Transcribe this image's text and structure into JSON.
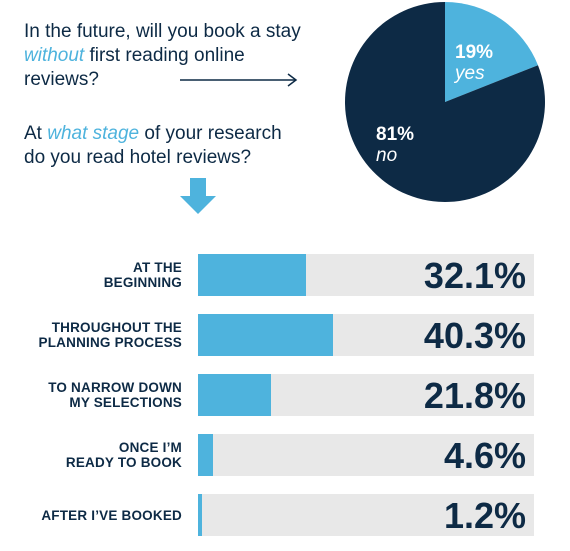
{
  "question1": {
    "pre": "In the future, will you book a stay ",
    "em": "without",
    "post": " first reading online reviews?"
  },
  "question2": {
    "pre": "At ",
    "em": "what stage",
    "post": " of your research do you read hotel reviews?"
  },
  "colors": {
    "navy": "#0d2a45",
    "accent": "#4eb3dd",
    "track": "#e8e8e8"
  },
  "chart_data": [
    {
      "type": "pie",
      "slices": [
        {
          "label": "yes",
          "value_label": "19%",
          "value": 19
        },
        {
          "label": "no",
          "value_label": "81%",
          "value": 81
        }
      ]
    },
    {
      "type": "bar",
      "orientation": "horizontal",
      "max": 100,
      "bars": [
        {
          "label_lines": [
            "AT THE",
            "BEGINNING"
          ],
          "value": 32.1,
          "value_label": "32.1%"
        },
        {
          "label_lines": [
            "THROUGHOUT THE",
            "PLANNING PROCESS"
          ],
          "value": 40.3,
          "value_label": "40.3%"
        },
        {
          "label_lines": [
            "TO NARROW DOWN",
            "MY SELECTIONS"
          ],
          "value": 21.8,
          "value_label": "21.8%"
        },
        {
          "label_lines": [
            "ONCE I’M",
            "READY TO BOOK"
          ],
          "value": 4.6,
          "value_label": "4.6%"
        },
        {
          "label_lines": [
            "AFTER I’VE BOOKED"
          ],
          "value": 1.2,
          "value_label": "1.2%"
        }
      ]
    }
  ]
}
